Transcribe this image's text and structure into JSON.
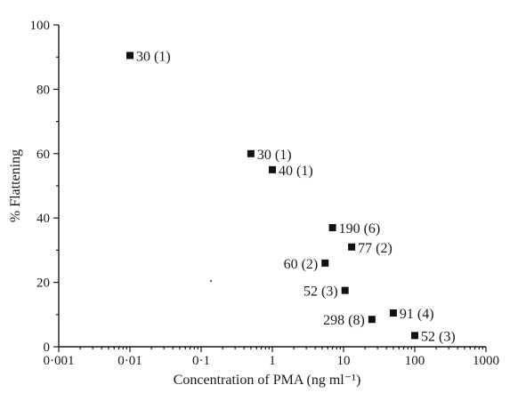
{
  "chart_data": {
    "type": "scatter",
    "xlabel": "Concentration of PMA (ng ml⁻¹)",
    "ylabel": "% Flattening",
    "xscale": "log",
    "xlim": [
      0.001,
      1000
    ],
    "ylim": [
      0,
      100
    ],
    "grid": false,
    "legend": "none",
    "xticks": [
      {
        "value": 0.001,
        "label": "0·001"
      },
      {
        "value": 0.01,
        "label": "0·01"
      },
      {
        "value": 0.1,
        "label": "0·1"
      },
      {
        "value": 1,
        "label": "1"
      },
      {
        "value": 10,
        "label": "10"
      },
      {
        "value": 100,
        "label": "100"
      },
      {
        "value": 1000,
        "label": "1000"
      }
    ],
    "yticks": [
      {
        "value": 0,
        "label": "0"
      },
      {
        "value": 20,
        "label": "20"
      },
      {
        "value": 40,
        "label": "40"
      },
      {
        "value": 60,
        "label": "60"
      },
      {
        "value": 80,
        "label": "80"
      },
      {
        "value": 100,
        "label": "100"
      }
    ],
    "points": [
      {
        "x": 0.01,
        "y": 90.5,
        "label": "30 (1)",
        "label_side": "right"
      },
      {
        "x": 0.5,
        "y": 60,
        "label": "30 (1)",
        "label_side": "right"
      },
      {
        "x": 1.0,
        "y": 55,
        "label": "40 (1)",
        "label_side": "right"
      },
      {
        "x": 7,
        "y": 37,
        "label": "190 (6)",
        "label_side": "right"
      },
      {
        "x": 13,
        "y": 31,
        "label": "77 (2)",
        "label_side": "right"
      },
      {
        "x": 5.5,
        "y": 26,
        "label": "60 (2)",
        "label_side": "left"
      },
      {
        "x": 10.5,
        "y": 17.5,
        "label": "52 (3)",
        "label_side": "left"
      },
      {
        "x": 25,
        "y": 8.5,
        "label": "298 (8)",
        "label_side": "left"
      },
      {
        "x": 50,
        "y": 10.5,
        "label": "91 (4)",
        "label_side": "right"
      },
      {
        "x": 100,
        "y": 3.5,
        "label": "52 (3)",
        "label_side": "right"
      }
    ]
  }
}
